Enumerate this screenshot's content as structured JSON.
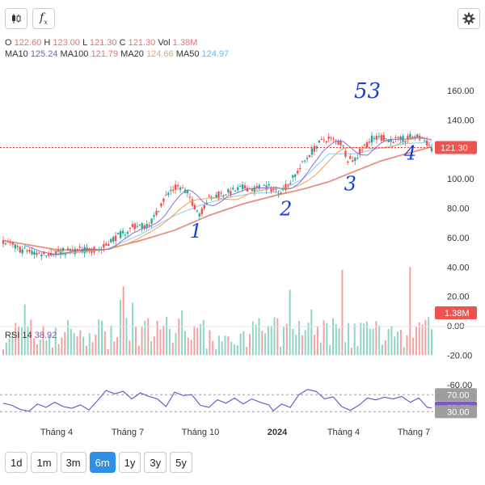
{
  "toolbar": {
    "candles_icon": "candlestick-icon",
    "indicator_icon": "function-icon",
    "indicator_label": "f",
    "indicator_sub": "x",
    "settings_icon": "gear-icon"
  },
  "legend": {
    "o_label": "O",
    "o": "122.60",
    "h_label": "H",
    "h": "123.00",
    "l_label": "L",
    "l": "121.30",
    "c_label": "C",
    "c": "121.30",
    "vol_label": "Vol",
    "vol": "1.38M",
    "ma10_label": "MA10",
    "ma10": "125.24",
    "ma100_label": "MA100",
    "ma100": "121.79",
    "ma20_label": "MA20",
    "ma20": "124.66",
    "ma50_label": "MA50",
    "ma50": "124.97",
    "colors": {
      "ma10": "#7e57c2",
      "ma100": "#ef6c6c",
      "ma20": "#f5a25d",
      "ma50": "#81d4fa"
    }
  },
  "periods": [
    "1d",
    "1m",
    "3m",
    "6m",
    "1y",
    "3y",
    "5y"
  ],
  "active_period": "6m",
  "chart_data": {
    "type": "candlestick",
    "price_axis": {
      "ticks": [
        "160.00",
        "140.00",
        "120.00",
        "100.00",
        "80.00",
        "60.00",
        "40.00",
        "20.00",
        "0.00",
        "-20.00"
      ],
      "ylim": [
        -20,
        160
      ]
    },
    "last_price_label": "121.30",
    "last_volume_label": "1.38M",
    "time_axis": [
      "Tháng 4",
      "Tháng 7",
      "Tháng 10",
      "2024",
      "Tháng 4",
      "Tháng 7"
    ],
    "close_path": [
      [
        0,
        57
      ],
      [
        4,
        52
      ],
      [
        8,
        49
      ],
      [
        12,
        50
      ],
      [
        16,
        51
      ],
      [
        20,
        52
      ],
      [
        23,
        52
      ],
      [
        25,
        58
      ],
      [
        28,
        63
      ],
      [
        31,
        68
      ],
      [
        33,
        68
      ],
      [
        35,
        72
      ],
      [
        37,
        84
      ],
      [
        39,
        92
      ],
      [
        41,
        95
      ],
      [
        43,
        90
      ],
      [
        44.5,
        82
      ],
      [
        46,
        76
      ],
      [
        47.5,
        85
      ],
      [
        50,
        89
      ],
      [
        53,
        91
      ],
      [
        56,
        94
      ],
      [
        59,
        93
      ],
      [
        61,
        95
      ],
      [
        63,
        93
      ],
      [
        65,
        92
      ],
      [
        67,
        98
      ],
      [
        69,
        106
      ],
      [
        71,
        115
      ],
      [
        73,
        122
      ],
      [
        75,
        127
      ],
      [
        77,
        126
      ],
      [
        79,
        124
      ],
      [
        80.5,
        113
      ],
      [
        82,
        113
      ],
      [
        84,
        121
      ],
      [
        86,
        127
      ],
      [
        88,
        128
      ],
      [
        90,
        127
      ],
      [
        92,
        126
      ],
      [
        94,
        127
      ],
      [
        96,
        129
      ],
      [
        98,
        127
      ],
      [
        100,
        121.3
      ]
    ],
    "ma100_path": [
      [
        0,
        58
      ],
      [
        6,
        55
      ],
      [
        12,
        52
      ],
      [
        18,
        51
      ],
      [
        24,
        52
      ],
      [
        32,
        58
      ],
      [
        40,
        65
      ],
      [
        48,
        75
      ],
      [
        56,
        83
      ],
      [
        64,
        89
      ],
      [
        70,
        93
      ],
      [
        76,
        98
      ],
      [
        82,
        105
      ],
      [
        88,
        112
      ],
      [
        94,
        117
      ],
      [
        100,
        121.79
      ]
    ],
    "ma50_path": [
      [
        12,
        48
      ],
      [
        18,
        50
      ],
      [
        24,
        52
      ],
      [
        32,
        62
      ],
      [
        40,
        75
      ],
      [
        46,
        82
      ],
      [
        52,
        87
      ],
      [
        58,
        90
      ],
      [
        64,
        91
      ],
      [
        70,
        100
      ],
      [
        76,
        117
      ],
      [
        82,
        117
      ],
      [
        88,
        121
      ],
      [
        94,
        124
      ],
      [
        100,
        124.97
      ]
    ],
    "volume_spikes": [
      [
        79,
        58
      ],
      [
        95,
        60
      ],
      [
        48,
        17
      ],
      [
        38,
        26
      ],
      [
        58,
        23
      ],
      [
        86,
        18
      ],
      [
        92,
        16
      ]
    ],
    "rsi": {
      "label": "RSI 14",
      "value": "38.92",
      "level_high": "70.00",
      "level_low": "30.00",
      "axis_label": "-60.00",
      "path": [
        [
          0,
          50
        ],
        [
          2,
          45
        ],
        [
          4,
          35
        ],
        [
          6,
          31
        ],
        [
          8,
          48
        ],
        [
          10,
          40
        ],
        [
          12,
          52
        ],
        [
          14,
          42
        ],
        [
          16,
          38
        ],
        [
          18,
          46
        ],
        [
          20,
          34
        ],
        [
          22,
          56
        ],
        [
          24,
          80
        ],
        [
          26,
          72
        ],
        [
          28,
          78
        ],
        [
          30,
          60
        ],
        [
          32,
          74
        ],
        [
          34,
          66
        ],
        [
          36,
          60
        ],
        [
          38,
          42
        ],
        [
          40,
          76
        ],
        [
          42,
          68
        ],
        [
          44,
          70
        ],
        [
          46,
          45
        ],
        [
          48,
          40
        ],
        [
          50,
          58
        ],
        [
          52,
          50
        ],
        [
          54,
          62
        ],
        [
          56,
          48
        ],
        [
          58,
          60
        ],
        [
          60,
          52
        ],
        [
          62,
          46
        ],
        [
          63,
          32
        ],
        [
          65,
          48
        ],
        [
          67,
          40
        ],
        [
          69,
          70
        ],
        [
          71,
          82
        ],
        [
          73,
          78
        ],
        [
          75,
          60
        ],
        [
          77,
          65
        ],
        [
          79,
          42
        ],
        [
          81,
          33
        ],
        [
          83,
          45
        ],
        [
          85,
          62
        ],
        [
          87,
          58
        ],
        [
          89,
          64
        ],
        [
          91,
          60
        ],
        [
          93,
          66
        ],
        [
          95,
          52
        ],
        [
          97,
          62
        ],
        [
          99,
          40
        ],
        [
          100,
          38.92
        ]
      ]
    },
    "annotations": [
      {
        "text": "1",
        "x": 45,
        "y": 60
      },
      {
        "text": "2",
        "x": 66,
        "y": 75
      },
      {
        "text": "3",
        "x": 81,
        "y": 92
      },
      {
        "text": "4",
        "x": 95,
        "y": 113
      },
      {
        "text": "53",
        "x": 85,
        "y": 155
      }
    ]
  }
}
